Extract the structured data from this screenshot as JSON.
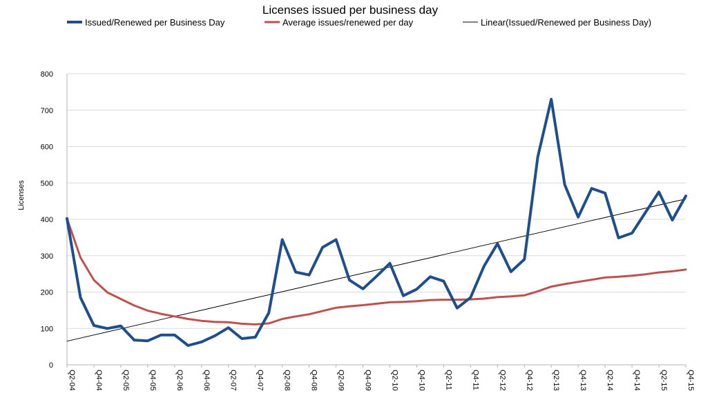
{
  "chart_data": {
    "type": "line",
    "title": "Licenses issued per business day",
    "ylabel": "Licenses",
    "xlabel": "",
    "ylim": [
      0,
      800
    ],
    "yticks": [
      0,
      100,
      200,
      300,
      400,
      500,
      600,
      700,
      800
    ],
    "grid": true,
    "legend_position": "top",
    "categories": [
      "Q2-04",
      "Q3-04",
      "Q4-04",
      "Q1-05",
      "Q2-05",
      "Q3-05",
      "Q4-05",
      "Q1-06",
      "Q2-06",
      "Q3-06",
      "Q4-06",
      "Q1-07",
      "Q2-07",
      "Q3-07",
      "Q4-07",
      "Q1-08",
      "Q2-08",
      "Q3-08",
      "Q4-08",
      "Q1-09",
      "Q2-09",
      "Q3-09",
      "Q4-09",
      "Q1-10",
      "Q2-10",
      "Q3-10",
      "Q4-10",
      "Q1-11",
      "Q2-11",
      "Q3-11",
      "Q4-11",
      "Q1-12",
      "Q2-12",
      "Q3-12",
      "Q4-12",
      "Q1-13",
      "Q2-13",
      "Q3-13",
      "Q4-13",
      "Q1-14",
      "Q2-14",
      "Q3-14",
      "Q4-14",
      "Q1-15",
      "Q2-15",
      "Q3-15",
      "Q4-15"
    ],
    "tick_labels": [
      "Q2-04",
      "Q4-04",
      "Q2-05",
      "Q4-05",
      "Q2-06",
      "Q4-06",
      "Q2-07",
      "Q4-07",
      "Q2-08",
      "Q4-08",
      "Q2-09",
      "Q4-09",
      "Q2-10",
      "Q4-10",
      "Q2-11",
      "Q4-11",
      "Q2-12",
      "Q4-12",
      "Q2-13",
      "Q4-13",
      "Q2-14",
      "Q4-14",
      "Q2-15",
      "Q4-15"
    ],
    "series": [
      {
        "name": "Issued/Renewed per Business Day",
        "color": "#1f4e8c",
        "style": "thick",
        "values": [
          402,
          185,
          108,
          100,
          107,
          68,
          66,
          82,
          82,
          53,
          63,
          80,
          102,
          72,
          76,
          143,
          344,
          255,
          247,
          323,
          344,
          233,
          209,
          243,
          279,
          190,
          208,
          242,
          230,
          156,
          185,
          271,
          333,
          256,
          290,
          572,
          730,
          495,
          406,
          485,
          472,
          349,
          362,
          419,
          475,
          398,
          464
        ]
      },
      {
        "name": "Average issues/renewed per day",
        "color": "#c0504d",
        "style": "medium",
        "values": [
          402,
          295,
          233,
          199,
          181,
          163,
          149,
          140,
          133,
          126,
          121,
          118,
          117,
          113,
          111,
          114,
          126,
          133,
          139,
          148,
          157,
          161,
          164,
          168,
          172,
          173,
          175,
          178,
          179,
          179,
          180,
          182,
          186,
          188,
          191,
          202,
          215,
          222,
          228,
          234,
          240,
          242,
          245,
          249,
          254,
          257,
          262
        ]
      },
      {
        "name": "Linear(Issued/Renewed per Business Day)",
        "color": "#000000",
        "style": "thin",
        "values": [
          65,
          73.5,
          82,
          90.5,
          99,
          107.5,
          116,
          124.5,
          133,
          141.5,
          150,
          158.5,
          167,
          175.5,
          184,
          192.5,
          201,
          209.5,
          218,
          226.5,
          235,
          243.5,
          252,
          260.5,
          269,
          277.5,
          286,
          294.5,
          303,
          311.5,
          320,
          328.5,
          337,
          345.5,
          354,
          362.5,
          371,
          379.5,
          388,
          396.5,
          405,
          413.5,
          422,
          430.5,
          439,
          447.5,
          456
        ]
      }
    ]
  }
}
